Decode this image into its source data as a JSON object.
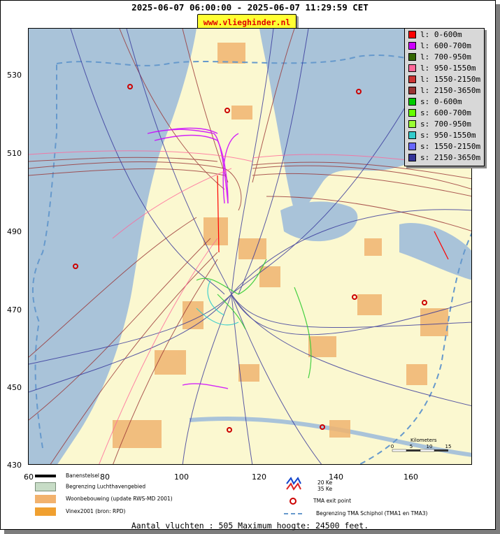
{
  "header": {
    "title": "2025-06-07 06:00:00 - 2025-06-07 11:29:59 CET",
    "site": "www.vlieghinder.nl"
  },
  "axes": {
    "y_ticks": [
      "530",
      "510",
      "490",
      "470",
      "450",
      "430"
    ],
    "x_ticks": [
      "60",
      "80",
      "100",
      "120",
      "140",
      "160"
    ]
  },
  "legend": {
    "items": [
      {
        "label": "l: 0-600m",
        "color": "#ff0000"
      },
      {
        "label": "l: 600-700m",
        "color": "#cc00ff"
      },
      {
        "label": "l: 700-950m",
        "color": "#336600"
      },
      {
        "label": "l: 950-1550m",
        "color": "#ff6699"
      },
      {
        "label": "l: 1550-2150m",
        "color": "#cc3333"
      },
      {
        "label": "l: 2150-3650m",
        "color": "#993333"
      },
      {
        "label": "s: 0-600m",
        "color": "#00cc00"
      },
      {
        "label": "s: 600-700m",
        "color": "#66ff00"
      },
      {
        "label": "s: 700-950m",
        "color": "#99ff33"
      },
      {
        "label": "s: 950-1550m",
        "color": "#33cccc"
      },
      {
        "label": "s: 1550-2150m",
        "color": "#6666ff"
      },
      {
        "label": "s: 2150-3650m",
        "color": "#333399"
      }
    ]
  },
  "map_legend": {
    "runways": "Banenstelsel",
    "airport_boundary": "Begrenzing Luchthavengebied",
    "housing": "Woonbebouwing (update RWS-MD 2001)",
    "vinex": "Vinex2001 (bron: RPD)",
    "ke20": "20 Ke",
    "ke35": "35 Ke",
    "tma_exit": "TMA exit point",
    "tma_boundary": "Begrenzing TMA Schiphol  (TMA1 en TMA3)"
  },
  "scale": {
    "label": "Kilometers",
    "ticks": [
      "0",
      "5",
      "10",
      "15"
    ]
  },
  "footer": {
    "text": "Aantal vluchten : 505 Maximum hoogte: 24500 feet."
  },
  "colors": {
    "sea": "#a9c3d9",
    "land": "#fbf8d0",
    "housing": "#f0b470",
    "water_inland": "#a9c3d9",
    "tma_boundary": "#6699cc",
    "tma_exit": "#cc0000",
    "landing_high": "#993333",
    "departure_high": "#333399",
    "landing_mid": "#cc00ff"
  }
}
